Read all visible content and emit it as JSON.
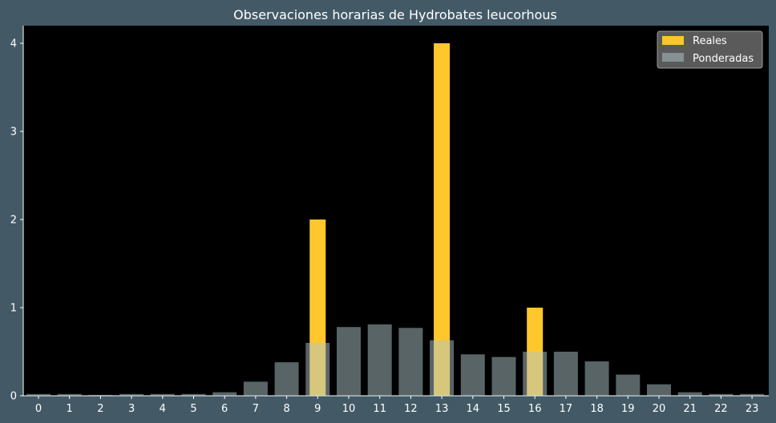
{
  "chart_data": {
    "type": "bar",
    "title": "Observaciones horarias de Hydrobates leucorhous",
    "xlabel": "",
    "ylabel": "",
    "categories": [
      "0",
      "1",
      "2",
      "3",
      "4",
      "5",
      "6",
      "7",
      "8",
      "9",
      "10",
      "11",
      "12",
      "13",
      "14",
      "15",
      "16",
      "17",
      "18",
      "19",
      "20",
      "21",
      "22",
      "23"
    ],
    "ylim": [
      0,
      4.2
    ],
    "yticks": [
      0,
      1,
      2,
      3,
      4
    ],
    "grid": false,
    "legend_position": "top-right",
    "series": [
      {
        "name": "Reales",
        "color": "#ffc72c",
        "values": [
          0,
          0,
          0,
          0,
          0,
          0,
          0,
          0,
          0,
          2,
          0,
          0,
          0,
          4,
          0,
          0,
          1,
          0,
          0,
          0,
          0,
          0,
          0,
          0
        ]
      },
      {
        "name": "Ponderadas",
        "color": "#b0c8cc",
        "opacity": 0.5,
        "values": [
          0.02,
          0.02,
          0.01,
          0.02,
          0.02,
          0.02,
          0.04,
          0.16,
          0.38,
          0.6,
          0.78,
          0.81,
          0.77,
          0.63,
          0.47,
          0.44,
          0.5,
          0.5,
          0.39,
          0.24,
          0.13,
          0.04,
          0.02,
          0.02
        ]
      }
    ],
    "colors": {
      "page_background": "#435a66",
      "plot_background": "#000000",
      "legend_background": "#5a5a5a",
      "text": "#ffffff"
    }
  }
}
